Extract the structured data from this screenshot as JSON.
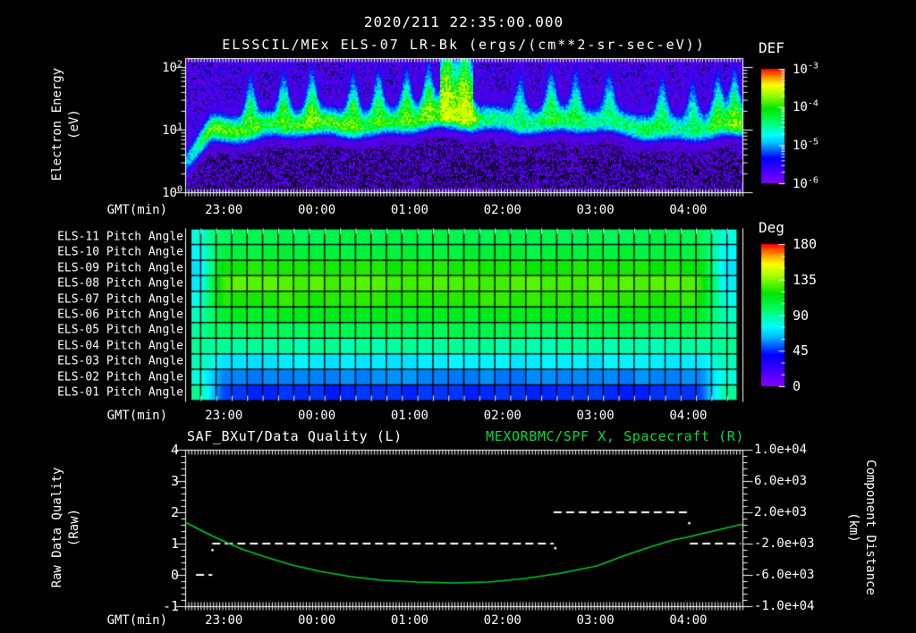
{
  "titles": {
    "datetime": "2020/211 22:35:00.000",
    "instrument_line": "ELSSCIL/MEx ELS-07 LR-Bk  (ergs/(cm**2-sr-sec-eV))"
  },
  "time_axis": {
    "label": "GMT(min)",
    "tick_labels": [
      "23:00",
      "00:00",
      "01:00",
      "02:00",
      "03:00",
      "04:00"
    ],
    "tick_minutes": [
      25,
      85,
      145,
      205,
      265,
      325
    ],
    "start": "22:35",
    "end": "04:35",
    "total_minutes": 360
  },
  "energy_panel": {
    "ylabel": [
      "Electron Energy",
      "(eV)"
    ],
    "yticks": [
      {
        "base": "10",
        "exp": "2"
      },
      {
        "base": "10",
        "exp": "1"
      },
      {
        "base": "10",
        "exp": "0"
      }
    ],
    "colorbar_title": "DEF",
    "colorbar_ticks": [
      {
        "base": "10",
        "exp": "-3"
      },
      {
        "base": "10",
        "exp": "-4"
      },
      {
        "base": "10",
        "exp": "-5"
      },
      {
        "base": "10",
        "exp": "-6"
      }
    ]
  },
  "pitch_panel": {
    "row_labels": [
      "ELS-11 Pitch Angle",
      "ELS-10 Pitch Angle",
      "ELS-09 Pitch Angle",
      "ELS-08 Pitch Angle",
      "ELS-07 Pitch Angle",
      "ELS-06 Pitch Angle",
      "ELS-05 Pitch Angle",
      "ELS-04 Pitch Angle",
      "ELS-03 Pitch Angle",
      "ELS-02 Pitch Angle",
      "ELS-01 Pitch Angle"
    ],
    "colorbar_title": "Deg",
    "colorbar_ticks": [
      "180",
      "135",
      "90",
      "45",
      "0"
    ]
  },
  "quality_panel": {
    "title_left": "SAF_BXuT/Data Quality (L)",
    "title_right": "MEXORBMC/SPF X, Spacecraft (R)",
    "ylabel_left": [
      "Raw Data Quality",
      "(Raw)"
    ],
    "yticks_left": [
      "4",
      "3",
      "2",
      "1",
      "0",
      "-1"
    ],
    "ylabel_right": [
      "Component Distance",
      "(km)"
    ],
    "yticks_right": [
      "1.0e+04",
      "6.0e+03",
      "2.0e+03",
      "-2.0e+03",
      "-6.0e+03",
      "-1.0e+04"
    ]
  },
  "colors": {
    "axis": "#ffffff",
    "background": "#000000",
    "curve_green": "#00c832",
    "title_green": "#00dc3c"
  },
  "chart_data": [
    {
      "type": "heatmap",
      "name": "electron_energy_spectrogram",
      "title": "ELSSCIL/MEx ELS-07 LR-Bk",
      "units": "ergs/(cm**2-sr-sec-eV)",
      "xlabel": "GMT(min)",
      "ylabel": "Electron Energy (eV)",
      "y_scale": "log",
      "y_range_eV": [
        1,
        200
      ],
      "x_range": [
        "22:35",
        "04:35"
      ],
      "colorbar": {
        "title": "DEF",
        "scale": "log",
        "tick_exponents": [
          -3,
          -4,
          -5,
          -6
        ]
      },
      "band": {
        "center_eV": 14,
        "left_dip_center_eV": 4,
        "bright_interval_frac": [
          0.455,
          0.515
        ],
        "dim_after_frac": 0.52,
        "plumes_frac": [
          0.115,
          0.175,
          0.225,
          0.3,
          0.345,
          0.395,
          0.435,
          0.468,
          0.5,
          0.6,
          0.655,
          0.7,
          0.76,
          0.855,
          0.91,
          0.955,
          0.985
        ]
      }
    },
    {
      "type": "heatmap",
      "name": "pitch_angle_grid",
      "rows": [
        "ELS-11",
        "ELS-10",
        "ELS-09",
        "ELS-08",
        "ELS-07",
        "ELS-06",
        "ELS-05",
        "ELS-04",
        "ELS-03",
        "ELS-02",
        "ELS-01"
      ],
      "colorbar": {
        "title": "Deg",
        "range": [
          0,
          180
        ]
      },
      "main_pitch_deg": [
        102,
        105,
        120,
        128,
        122,
        110,
        100,
        88,
        72,
        56,
        45
      ],
      "edge_pitch_deg": [
        80,
        75,
        70,
        72,
        78,
        84,
        88,
        90,
        85,
        80,
        90
      ],
      "edge_blend_frac": [
        0.018,
        0.075,
        0.915,
        0.975
      ],
      "cell_minutes": 10
    },
    {
      "type": "line",
      "name": "quality_and_distance",
      "ylim_left": [
        -1,
        4
      ],
      "ylim_right": [
        -10000,
        10000
      ],
      "series": [
        {
          "name": "SAF_BXuT/Data Quality (L)",
          "axis": "left",
          "style": "dashed",
          "color": "#ffffff",
          "steps": [
            {
              "from_min": 7,
              "to_min": 17.5,
              "value": 0
            },
            {
              "from_min": 17.5,
              "to_min": 238,
              "value": 1
            },
            {
              "from_min": 238,
              "to_min": 325,
              "value": 2
            },
            {
              "from_min": 326,
              "to_min": 359,
              "value": 1
            }
          ],
          "dots": [
            {
              "min": 17.5,
              "value": 0.8
            },
            {
              "min": 239,
              "value": 0.86
            },
            {
              "min": 325.5,
              "value": 1.66
            }
          ]
        },
        {
          "name": "MEXORBMC/SPF X, Spacecraft (R)",
          "axis": "right",
          "style": "solid",
          "color": "#00c832",
          "t_min": [
            0,
            9,
            17,
            27,
            38,
            52,
            69,
            87,
            107,
            127,
            150,
            173,
            196,
            220,
            243,
            266,
            283,
            300,
            315,
            324,
            341,
            358,
            360
          ],
          "km": [
            770,
            -140,
            -940,
            -1860,
            -2770,
            -3690,
            -4710,
            -5510,
            -6200,
            -6660,
            -6890,
            -7000,
            -6890,
            -6430,
            -5740,
            -4830,
            -3570,
            -2430,
            -1510,
            -1170,
            -370,
            430,
            480
          ]
        }
      ]
    }
  ]
}
